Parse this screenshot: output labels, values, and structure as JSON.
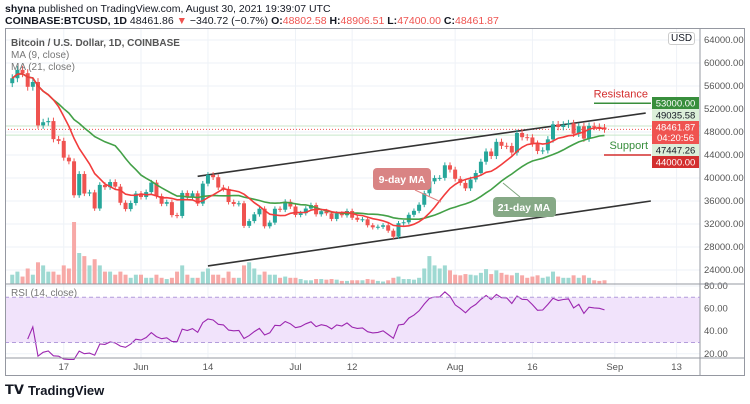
{
  "header": {
    "author": "shyna",
    "published_text": "published on TradingView.com, August 30, 2021 19:39:07 UTC",
    "symbol": "COINBASE:BTCUSD, 1D",
    "last": "48461.86",
    "change_icon": "triangle-down",
    "change": "−340.72 (−0.7%)",
    "o_label": "O:",
    "o": "48802.58",
    "h_label": "H:",
    "h": "48906.51",
    "l_label": "L:",
    "l": "47400.00",
    "c_label": "C:",
    "c": "48461.87"
  },
  "legend": {
    "title": "Bitcoin / U.S. Dollar, 1D, COINBASE",
    "ma9": "MA (9, close)",
    "ma21": "MA (21, close)",
    "rsi": "RSI (14, close)"
  },
  "currency_badge": "USD",
  "brand": "TradingView",
  "colors": {
    "up": "#26a69a",
    "down": "#ef5350",
    "ma9": "#f23c3c",
    "ma21": "#43a047",
    "rsi": "#9c27b0",
    "rsi_band": "#f1e3fb"
  },
  "chart_data": {
    "type": "candlestick",
    "start_date": "2021-05-07",
    "interval": "1D",
    "closes": [
      57350,
      58800,
      58230,
      55860,
      56700,
      49150,
      49700,
      49900,
      46760,
      46450,
      43540,
      42900,
      37000,
      40700,
      37300,
      37500,
      34700,
      38800,
      38400,
      39300,
      38500,
      35700,
      34600,
      35650,
      37300,
      36700,
      37550,
      39200,
      36850,
      35520,
      35800,
      33550,
      33400,
      37400,
      36690,
      37340,
      35550,
      39020,
      40530,
      40140,
      38350,
      38100,
      35820,
      35480,
      35600,
      31680,
      32510,
      33680,
      34660,
      31600,
      32240,
      34650,
      34480,
      35870,
      35040,
      33570,
      33880,
      34690,
      35290,
      33690,
      34230,
      33860,
      32880,
      33820,
      33520,
      34260,
      33090,
      32730,
      32820,
      31780,
      31420,
      31520,
      31780,
      30840,
      29790,
      32140,
      32300,
      33600,
      34290,
      35350,
      37340,
      39410,
      39990,
      40020,
      42210,
      41460,
      39860,
      39150,
      38200,
      39740,
      40870,
      42830,
      44610,
      43820,
      46290,
      45600,
      45570,
      44430,
      47830,
      47100,
      47050,
      45980,
      44690,
      44800,
      46720,
      49330,
      48870,
      49280,
      49520,
      47700,
      48990,
      46850,
      49070,
      48900,
      48800,
      48461.87
    ],
    "volume_relative": [
      0.15,
      0.2,
      0.12,
      0.25,
      0.15,
      0.35,
      0.3,
      0.2,
      0.2,
      0.15,
      0.3,
      0.25,
      1.0,
      0.5,
      0.45,
      0.3,
      0.4,
      0.3,
      0.2,
      0.2,
      0.15,
      0.2,
      0.15,
      0.1,
      0.15,
      0.15,
      0.1,
      0.1,
      0.15,
      0.1,
      0.08,
      0.1,
      0.2,
      0.3,
      0.15,
      0.1,
      0.1,
      0.2,
      0.25,
      0.15,
      0.15,
      0.1,
      0.2,
      0.1,
      0.1,
      0.3,
      0.35,
      0.25,
      0.15,
      0.2,
      0.15,
      0.15,
      0.1,
      0.12,
      0.1,
      0.1,
      0.08,
      0.06,
      0.06,
      0.08,
      0.08,
      0.07,
      0.08,
      0.07,
      0.05,
      0.05,
      0.06,
      0.06,
      0.06,
      0.08,
      0.07,
      0.05,
      0.04,
      0.06,
      0.1,
      0.12,
      0.08,
      0.08,
      0.07,
      0.1,
      0.25,
      0.45,
      0.3,
      0.25,
      0.3,
      0.22,
      0.15,
      0.14,
      0.16,
      0.15,
      0.14,
      0.18,
      0.24,
      0.16,
      0.22,
      0.18,
      0.15,
      0.14,
      0.18,
      0.14,
      0.1,
      0.12,
      0.14,
      0.1,
      0.12,
      0.2,
      0.12,
      0.1,
      0.1,
      0.14,
      0.1,
      0.14,
      0.1,
      0.06,
      0.05,
      0.06
    ],
    "ma_periods": [
      9,
      21
    ],
    "rsi_period": 14,
    "ylim": [
      22000,
      66000
    ],
    "price_ticks": [
      "64000.00",
      "60000.00",
      "56000.00",
      "52000.00",
      "48000.00",
      "44000.00",
      "40000.00",
      "36000.00",
      "32000.00",
      "28000.00",
      "24000.00"
    ],
    "rsi_ticks": [
      "80.00",
      "60.00",
      "40.00",
      "20.00"
    ],
    "rsi_band": [
      30,
      70
    ],
    "x_ticks": [
      {
        "date": "2021-05-17",
        "label": "17"
      },
      {
        "date": "2021-06-01",
        "label": "Jun"
      },
      {
        "date": "2021-06-14",
        "label": "14"
      },
      {
        "date": "2021-07-01",
        "label": "Jul"
      },
      {
        "date": "2021-07-12",
        "label": "12"
      },
      {
        "date": "2021-08-01",
        "label": "Aug"
      },
      {
        "date": "2021-08-16",
        "label": "16"
      },
      {
        "date": "2021-09-01",
        "label": "Sep"
      },
      {
        "date": "2021-09-13",
        "label": "13"
      }
    ],
    "trendlines": [
      {
        "from": {
          "date": "2021-06-12",
          "price": 40300
        },
        "to": {
          "date": "2021-09-07",
          "price": 51300
        }
      },
      {
        "from": {
          "date": "2021-06-14",
          "price": 24700
        },
        "to": {
          "date": "2021-09-08",
          "price": 36000
        }
      }
    ],
    "price_tags": [
      {
        "value": "53000.00",
        "bg": "#388e3c",
        "fg": "#ffffff"
      },
      {
        "value": "49035.58",
        "bg": "#dcefd9",
        "fg": "#131722"
      },
      {
        "value": "48461.87",
        "sub": "04:20:56",
        "bg": "#ef5350",
        "fg": "#ffffff"
      },
      {
        "value": "47447.26",
        "bg": "#dcefd9",
        "fg": "#131722"
      },
      {
        "value": "44000.00",
        "bg": "#d32f2f",
        "fg": "#ffffff"
      }
    ],
    "annotations": {
      "resistance": {
        "label": "Resistance",
        "price": 53000
      },
      "support": {
        "label": "Support",
        "price": 44000
      },
      "ma9_label": "9-day MA",
      "ma21_label": "21-day MA"
    }
  }
}
